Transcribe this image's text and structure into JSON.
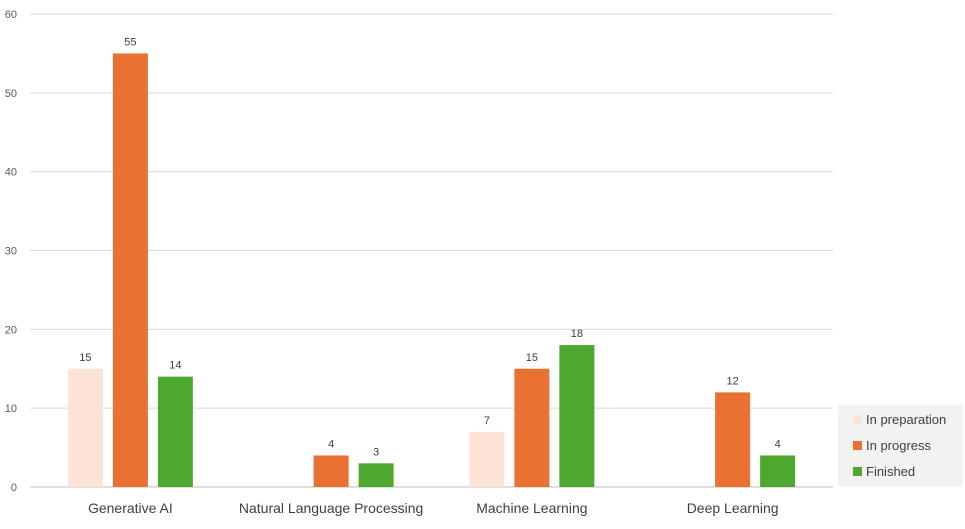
{
  "chart_data": {
    "type": "bar",
    "title": "",
    "xlabel": "",
    "ylabel": "",
    "categories": [
      "Generative AI",
      "Natural Language Processing",
      "Machine Learning",
      "Deep Learning"
    ],
    "series": [
      {
        "name": "In preparation",
        "color": "#fbe3d6",
        "values": [
          15,
          null,
          7,
          null
        ]
      },
      {
        "name": "In progress",
        "color": "#e97132",
        "values": [
          55,
          4,
          15,
          12
        ]
      },
      {
        "name": "Finished",
        "color": "#4ea72e",
        "values": [
          14,
          3,
          18,
          4
        ]
      }
    ],
    "ylim": [
      0,
      60
    ],
    "yticks": [
      0,
      10,
      20,
      30,
      40,
      50,
      60
    ],
    "grid": true,
    "data_labels": true,
    "legend_position": "right-bottom",
    "legend_background": "#f2f2f2"
  }
}
